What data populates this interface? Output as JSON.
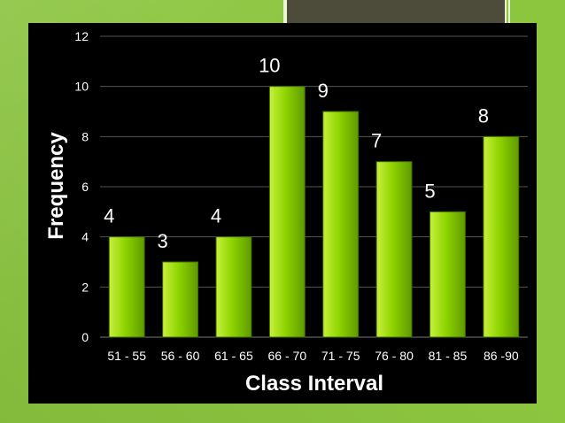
{
  "chart_data": {
    "type": "bar",
    "categories": [
      "51 - 55",
      "56 - 60",
      "61 - 65",
      "66 - 70",
      "71 - 75",
      "76 - 80",
      "81 - 85",
      "86 -90"
    ],
    "values": [
      4,
      3,
      4,
      10,
      9,
      7,
      5,
      8
    ],
    "xlabel": "Class Interval",
    "ylabel": "Frequency",
    "ylim": [
      0,
      12
    ],
    "yticks": [
      0,
      2,
      4,
      6,
      8,
      10,
      12
    ],
    "grid": true,
    "data_labels": true
  },
  "colors": {
    "bar_light": "#c8f03c",
    "bar_mid": "#8ed400",
    "bar_dark": "#5e9a00",
    "panel": "#000000",
    "slide_background": "#8cc63f",
    "grid": "#555555"
  }
}
